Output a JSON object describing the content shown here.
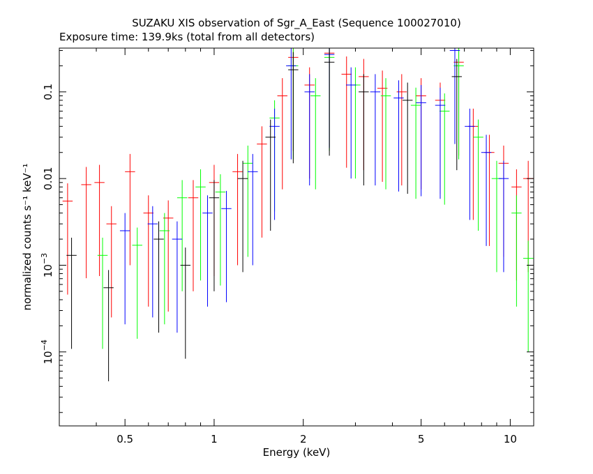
{
  "chart_data": {
    "type": "scatter",
    "title": "SUZAKU XIS observation of Sgr_A_East (Sequence 100027010)",
    "subtitle": "Exposure time: 139.9ks (total from all detectors)",
    "xlabel": "Energy (keV)",
    "ylabel": "normalized counts s⁻¹ keV⁻¹",
    "x_scale": "log",
    "y_scale": "log",
    "xlim": [
      0.3,
      12.0
    ],
    "ylim": [
      1.4e-05,
      0.32
    ],
    "x_ticks": [
      {
        "value": 0.5,
        "label": "0.5"
      },
      {
        "value": 1,
        "label": "1"
      },
      {
        "value": 2,
        "label": "2"
      },
      {
        "value": 5,
        "label": "5"
      },
      {
        "value": 10,
        "label": "10"
      }
    ],
    "y_ticks": [
      {
        "value": 0.0001,
        "base": "10",
        "exp": "−4"
      },
      {
        "value": 0.001,
        "base": "10",
        "exp": "−3"
      },
      {
        "value": 0.01,
        "label": "0.01"
      },
      {
        "value": 0.1,
        "label": "0.1"
      }
    ],
    "series": [
      {
        "color": "#ff0000",
        "points": [
          {
            "x": 0.32,
            "y": 0.0055
          },
          {
            "x": 0.37,
            "y": 0.0085
          },
          {
            "x": 0.41,
            "y": 0.009
          },
          {
            "x": 0.45,
            "y": 0.003
          },
          {
            "x": 0.52,
            "y": 0.012
          },
          {
            "x": 0.6,
            "y": 0.004
          },
          {
            "x": 0.7,
            "y": 0.0035
          },
          {
            "x": 0.85,
            "y": 0.006
          },
          {
            "x": 1.0,
            "y": 0.009
          },
          {
            "x": 1.2,
            "y": 0.012
          },
          {
            "x": 1.45,
            "y": 0.025
          },
          {
            "x": 1.7,
            "y": 0.09
          },
          {
            "x": 1.85,
            "y": 0.25
          },
          {
            "x": 2.1,
            "y": 0.12
          },
          {
            "x": 2.45,
            "y": 0.28
          },
          {
            "x": 2.8,
            "y": 0.16
          },
          {
            "x": 3.2,
            "y": 0.15
          },
          {
            "x": 3.7,
            "y": 0.11
          },
          {
            "x": 4.3,
            "y": 0.1
          },
          {
            "x": 5.0,
            "y": 0.09
          },
          {
            "x": 5.8,
            "y": 0.08
          },
          {
            "x": 6.7,
            "y": 0.22
          },
          {
            "x": 7.5,
            "y": 0.04
          },
          {
            "x": 8.5,
            "y": 0.02
          },
          {
            "x": 9.5,
            "y": 0.015
          },
          {
            "x": 10.5,
            "y": 0.008
          },
          {
            "x": 11.5,
            "y": 0.01
          }
        ]
      },
      {
        "color": "#00ff00",
        "points": [
          {
            "x": 0.42,
            "y": 0.0013
          },
          {
            "x": 0.55,
            "y": 0.0017
          },
          {
            "x": 0.68,
            "y": 0.0025
          },
          {
            "x": 0.78,
            "y": 0.006
          },
          {
            "x": 0.9,
            "y": 0.008
          },
          {
            "x": 1.05,
            "y": 0.007
          },
          {
            "x": 1.3,
            "y": 0.015
          },
          {
            "x": 1.6,
            "y": 0.05
          },
          {
            "x": 1.85,
            "y": 0.2
          },
          {
            "x": 2.2,
            "y": 0.09
          },
          {
            "x": 2.45,
            "y": 0.25
          },
          {
            "x": 3.0,
            "y": 0.12
          },
          {
            "x": 3.8,
            "y": 0.09
          },
          {
            "x": 4.8,
            "y": 0.07
          },
          {
            "x": 6.0,
            "y": 0.06
          },
          {
            "x": 6.7,
            "y": 0.2
          },
          {
            "x": 7.8,
            "y": 0.03
          },
          {
            "x": 9.0,
            "y": 0.01
          },
          {
            "x": 10.5,
            "y": 0.004
          },
          {
            "x": 11.5,
            "y": 0.0012
          }
        ]
      },
      {
        "color": "#0000ff",
        "points": [
          {
            "x": 0.5,
            "y": 0.0025
          },
          {
            "x": 0.62,
            "y": 0.003
          },
          {
            "x": 0.75,
            "y": 0.002
          },
          {
            "x": 0.95,
            "y": 0.004
          },
          {
            "x": 1.1,
            "y": 0.0045
          },
          {
            "x": 1.35,
            "y": 0.012
          },
          {
            "x": 1.6,
            "y": 0.04
          },
          {
            "x": 1.82,
            "y": 0.2
          },
          {
            "x": 2.1,
            "y": 0.1
          },
          {
            "x": 2.45,
            "y": 0.27
          },
          {
            "x": 2.9,
            "y": 0.12
          },
          {
            "x": 3.5,
            "y": 0.1
          },
          {
            "x": 4.2,
            "y": 0.085
          },
          {
            "x": 5.0,
            "y": 0.075
          },
          {
            "x": 5.8,
            "y": 0.07
          },
          {
            "x": 6.5,
            "y": 0.3
          },
          {
            "x": 7.3,
            "y": 0.04
          },
          {
            "x": 8.3,
            "y": 0.02
          },
          {
            "x": 9.5,
            "y": 0.01
          }
        ]
      },
      {
        "color": "#000000",
        "points": [
          {
            "x": 0.33,
            "y": 0.0013
          },
          {
            "x": 0.44,
            "y": 0.00055
          },
          {
            "x": 0.65,
            "y": 0.002
          },
          {
            "x": 0.8,
            "y": 0.001
          },
          {
            "x": 1.0,
            "y": 0.006
          },
          {
            "x": 1.25,
            "y": 0.01
          },
          {
            "x": 1.55,
            "y": 0.03
          },
          {
            "x": 1.85,
            "y": 0.18
          },
          {
            "x": 2.45,
            "y": 0.22
          },
          {
            "x": 3.2,
            "y": 0.1
          },
          {
            "x": 4.5,
            "y": 0.08
          },
          {
            "x": 6.6,
            "y": 0.15
          }
        ]
      }
    ]
  }
}
